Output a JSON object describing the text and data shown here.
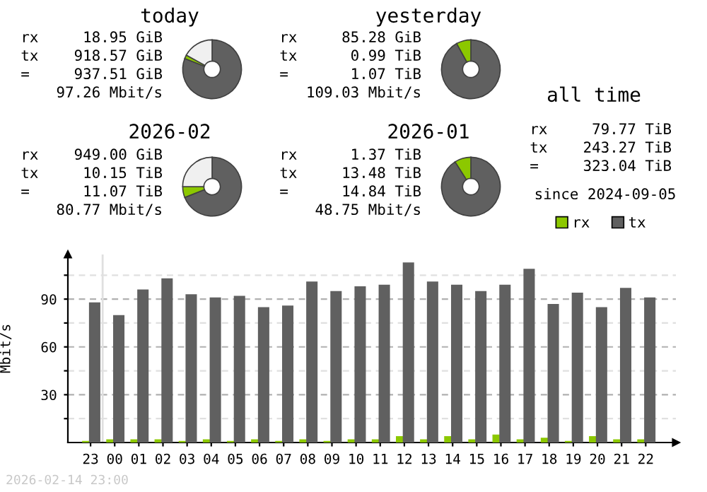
{
  "chart_data": [
    {
      "type": "donut",
      "title": "today",
      "categories": [
        null,
        null,
        null
      ],
      "values": [
        81,
        2,
        17
      ],
      "colors": [
        "#606060",
        "#8cc800",
        "#f0f0f0"
      ],
      "annotations": [
        "rx 18.95 GiB",
        "tx 918.57 GiB",
        "= 937.51 GiB",
        "97.26 Mbit/s"
      ]
    },
    {
      "type": "donut",
      "title": "yesterday",
      "categories": [
        null,
        null
      ],
      "values": [
        92,
        8
      ],
      "colors": [
        "#606060",
        "#8cc800"
      ],
      "annotations": [
        "rx 85.28 GiB",
        "tx 0.99 TiB",
        "= 1.07 TiB",
        "109.03 Mbit/s"
      ]
    },
    {
      "type": "other",
      "title": "all time",
      "annotations": [
        "rx 79.77 TiB",
        "tx 243.27 TiB",
        "= 323.04 TiB",
        "since 2024-09-05"
      ]
    },
    {
      "type": "donut",
      "title": "2026-02",
      "categories": [
        null,
        null,
        null
      ],
      "values": [
        69,
        6,
        25
      ],
      "colors": [
        "#606060",
        "#8cc800",
        "#f0f0f0"
      ],
      "annotations": [
        "rx 949.00 GiB",
        "tx 10.15 TiB",
        "= 11.07 TiB",
        "80.77 Mbit/s"
      ]
    },
    {
      "type": "donut",
      "title": "2026-01",
      "categories": [
        null,
        null
      ],
      "values": [
        91,
        9
      ],
      "colors": [
        "#606060",
        "#8cc800"
      ],
      "annotations": [
        "rx 1.37 TiB",
        "tx 13.48 TiB",
        "= 14.84 TiB",
        "48.75 Mbit/s"
      ]
    },
    {
      "type": "bar",
      "ylabel": "Mbit/s",
      "legend": "top right",
      "grid": "y",
      "categories": [
        "23",
        "00",
        "01",
        "02",
        "03",
        "04",
        "05",
        "06",
        "07",
        "08",
        "09",
        "10",
        "11",
        "12",
        "13",
        "14",
        "15",
        "16",
        "17",
        "18",
        "19",
        "20",
        "21",
        "22"
      ],
      "series": [
        {
          "name": "rx",
          "color": "#8cc800",
          "values": [
            1,
            2,
            2,
            2,
            1,
            2,
            1,
            2,
            1,
            2,
            1,
            2,
            2,
            4,
            2,
            4,
            2,
            5,
            2,
            3,
            1,
            4,
            2,
            2
          ]
        },
        {
          "name": "tx",
          "color": "#606060",
          "values": [
            88,
            80,
            96,
            103,
            93,
            91,
            92,
            85,
            86,
            101,
            95,
            98,
            99,
            113,
            101,
            99,
            95,
            99,
            109,
            87,
            94,
            85,
            97,
            91
          ]
        }
      ],
      "ylim": [
        0,
        118
      ],
      "yticks": [
        {
          "value": 15,
          "label": null
        },
        30,
        {
          "value": 45,
          "label": null
        },
        60,
        {
          "value": 75,
          "label": null
        },
        90,
        {
          "value": 105,
          "label": null
        }
      ],
      "ref_lines": [
        {
          "axis": "x",
          "value": "00",
          "color": "#e0e0e0"
        }
      ],
      "annotations": [
        "2026-02-14 23:00"
      ]
    }
  ]
}
